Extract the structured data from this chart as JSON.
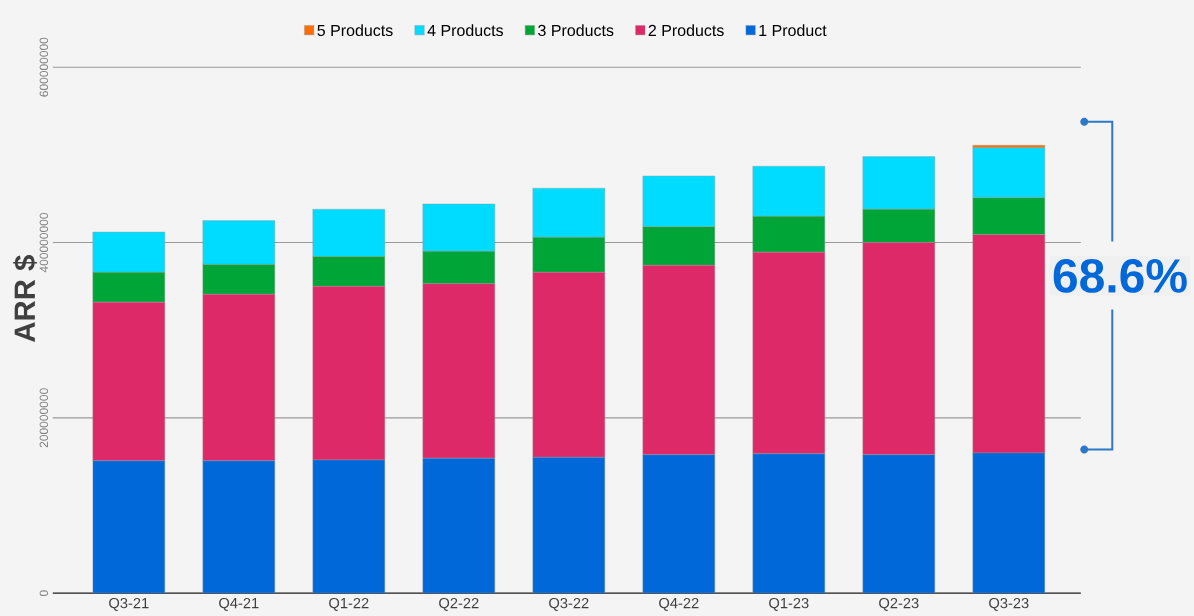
{
  "chart_data": {
    "type": "bar",
    "stacked": true,
    "ylabel": "ARR $",
    "categories": [
      "Q3-21",
      "Q4-21",
      "Q1-22",
      "Q2-22",
      "Q3-22",
      "Q4-22",
      "Q1-23",
      "Q2-23",
      "Q3-23"
    ],
    "series": [
      {
        "name": "1 Product",
        "color": "#0068d9",
        "values": [
          151000000,
          151000000,
          152000000,
          154000000,
          155000000,
          158000000,
          159000000,
          158000000,
          160000000
        ]
      },
      {
        "name": "2 Products",
        "color": "#dd2968",
        "values": [
          181000000,
          190000000,
          198000000,
          199000000,
          211000000,
          216000000,
          230000000,
          242000000,
          249000000
        ]
      },
      {
        "name": "3 Products",
        "color": "#00a537",
        "values": [
          34000000,
          34000000,
          34000000,
          37000000,
          40000000,
          44000000,
          41000000,
          38000000,
          42000000
        ]
      },
      {
        "name": "4 Products",
        "color": "#00dcff",
        "values": [
          46000000,
          50000000,
          54000000,
          54000000,
          56000000,
          58000000,
          57000000,
          60000000,
          57000000
        ]
      },
      {
        "name": "5 Products",
        "color": "#ff6d00",
        "values": [
          0,
          0,
          0,
          0,
          0,
          0,
          0,
          0,
          3000000
        ]
      }
    ],
    "ylim": [
      0,
      600000000
    ],
    "yticks": [
      0,
      200000000,
      400000000,
      600000000
    ],
    "grid": "y",
    "legend": "top",
    "annotations": [
      "68.6%"
    ]
  }
}
